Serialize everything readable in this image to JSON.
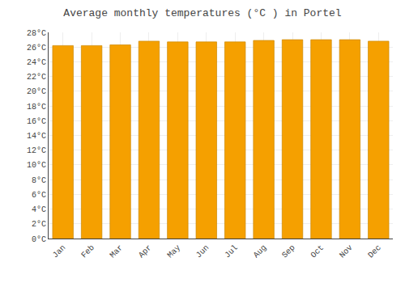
{
  "chart_data": {
    "type": "bar",
    "title": "Average monthly temperatures (°C ) in Portel",
    "categories": [
      "Jan",
      "Feb",
      "Mar",
      "Apr",
      "May",
      "Jun",
      "Jul",
      "Aug",
      "Sep",
      "Oct",
      "Nov",
      "Dec"
    ],
    "values": [
      26.2,
      26.2,
      26.3,
      26.8,
      26.7,
      26.7,
      26.7,
      26.9,
      27.0,
      27.0,
      27.0,
      26.8
    ],
    "color": "#F5A000",
    "ylim": [
      0,
      28
    ],
    "yticks": [
      {
        "value": 0,
        "label": "0°C"
      },
      {
        "value": 2,
        "label": "2°C"
      },
      {
        "value": 4,
        "label": "4°C"
      },
      {
        "value": 6,
        "label": "6°C"
      },
      {
        "value": 8,
        "label": "8°C"
      },
      {
        "value": 10,
        "label": "10°C"
      },
      {
        "value": 12,
        "label": "12°C"
      },
      {
        "value": 14,
        "label": "14°C"
      },
      {
        "value": 16,
        "label": "16°C"
      },
      {
        "value": 18,
        "label": "18°C"
      },
      {
        "value": 20,
        "label": "20°C"
      },
      {
        "value": 22,
        "label": "22°C"
      },
      {
        "value": 24,
        "label": "24°C"
      },
      {
        "value": 26,
        "label": "26°C"
      },
      {
        "value": 28,
        "label": "28°C"
      }
    ],
    "grid": true
  }
}
